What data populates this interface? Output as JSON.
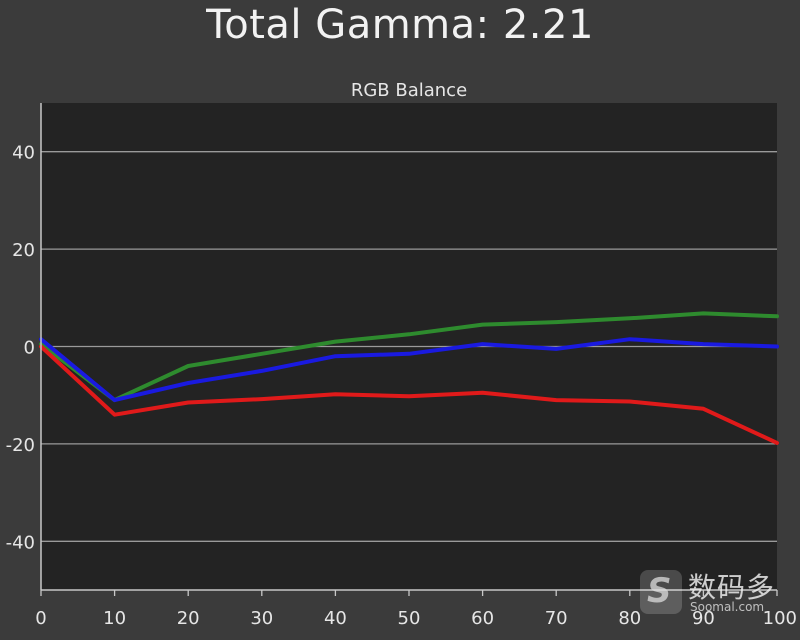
{
  "header": {
    "title": "Total Gamma: 2.21"
  },
  "chart_data": {
    "type": "line",
    "title": "RGB Balance",
    "xlabel": "",
    "ylabel": "",
    "xlim": [
      0,
      100
    ],
    "ylim": [
      -50,
      50
    ],
    "x_ticks": [
      0,
      10,
      20,
      30,
      40,
      50,
      60,
      70,
      80,
      90,
      100
    ],
    "y_ticks": [
      40,
      20,
      0,
      -20,
      -40
    ],
    "grid": "horizontal",
    "x": [
      0,
      10,
      20,
      30,
      40,
      50,
      60,
      70,
      80,
      90,
      100
    ],
    "series": [
      {
        "color": "#2e8b2e",
        "values": [
          0.5,
          -11,
          -4,
          -1.5,
          1,
          2.5,
          4.5,
          5,
          5.8,
          6.8,
          6.2
        ]
      },
      {
        "color": "#e01a1a",
        "values": [
          0,
          -14,
          -11.5,
          -10.8,
          -9.8,
          -10.2,
          -9.5,
          -11,
          -11.3,
          -12.8,
          -19.8
        ]
      },
      {
        "color": "#1a1ae0",
        "values": [
          1.5,
          -11,
          -7.5,
          -5,
          -2,
          -1.5,
          0.5,
          -0.5,
          1.5,
          0.5,
          0
        ]
      }
    ]
  },
  "watermark": {
    "mark": "S",
    "text": "数码多",
    "sub": "Soomal.com"
  }
}
